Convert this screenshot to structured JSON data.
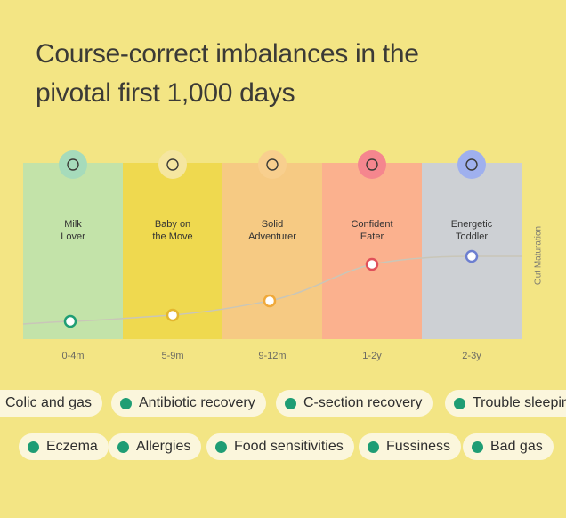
{
  "header": {
    "title_lines": [
      "Course-correct imbalances in the",
      "pivotal first 1,000 days"
    ]
  },
  "stages": [
    {
      "label_lines": [
        "Milk",
        "Lover"
      ],
      "age": "0-4m"
    },
    {
      "label_lines": [
        "Baby on",
        "the Move"
      ],
      "age": "5-9m"
    },
    {
      "label_lines": [
        "Solid",
        "Adventurer"
      ],
      "age": "9-12m"
    },
    {
      "label_lines": [
        "Confident",
        "Eater"
      ],
      "age": "1-2y"
    },
    {
      "label_lines": [
        "Energetic",
        "Toddler"
      ],
      "age": "2-3y"
    }
  ],
  "axis_label": "Gut Maturation",
  "tags": [
    [
      "Colic and gas",
      "Antibiotic recovery",
      "C-section recovery",
      "Trouble sleeping"
    ],
    [
      "Eczema",
      "Allergies",
      "Food sensitivities",
      "Fussiness",
      "Bad gas"
    ]
  ]
}
